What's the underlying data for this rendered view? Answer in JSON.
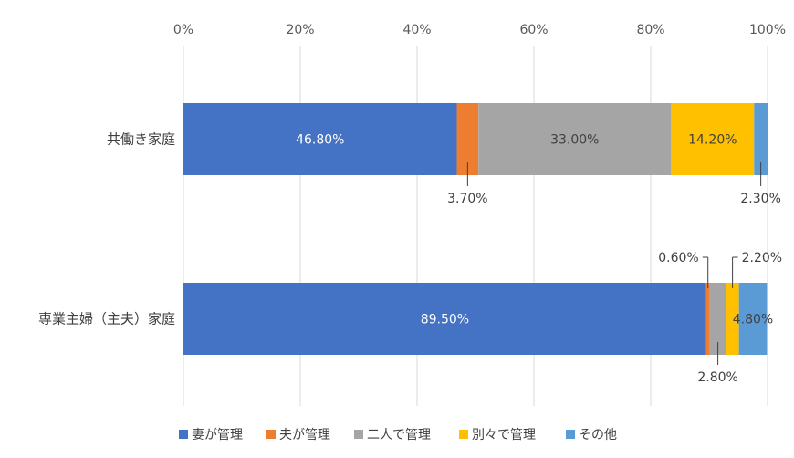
{
  "chart_data": {
    "type": "bar",
    "orientation": "horizontal",
    "stacked": "percent",
    "categories": [
      "共働き家庭",
      "専業主婦（主夫）家庭"
    ],
    "series": [
      {
        "name": "妻が管理",
        "values": [
          46.8,
          89.5
        ],
        "color": "#4472C4"
      },
      {
        "name": "夫が管理",
        "values": [
          3.7,
          0.6
        ],
        "color": "#ED7D31"
      },
      {
        "name": "二人で管理",
        "values": [
          33.0,
          2.8
        ],
        "color": "#A5A5A5"
      },
      {
        "name": "別々で管理",
        "values": [
          14.2,
          2.2
        ],
        "color": "#FFC000"
      },
      {
        "name": "その他",
        "values": [
          2.3,
          4.8
        ],
        "color": "#5B9BD5"
      }
    ],
    "data_labels": [
      [
        "46.80%",
        "3.70%",
        "33.00%",
        "14.20%",
        "2.30%"
      ],
      [
        "89.50%",
        "0.60%",
        "2.80%",
        "2.20%",
        "4.80%"
      ]
    ],
    "x_ticks": [
      "0%",
      "20%",
      "40%",
      "60%",
      "80%",
      "100%"
    ],
    "xlim": [
      0,
      100
    ],
    "x_axis_position": "top",
    "grid": true,
    "legend": "bottom"
  }
}
